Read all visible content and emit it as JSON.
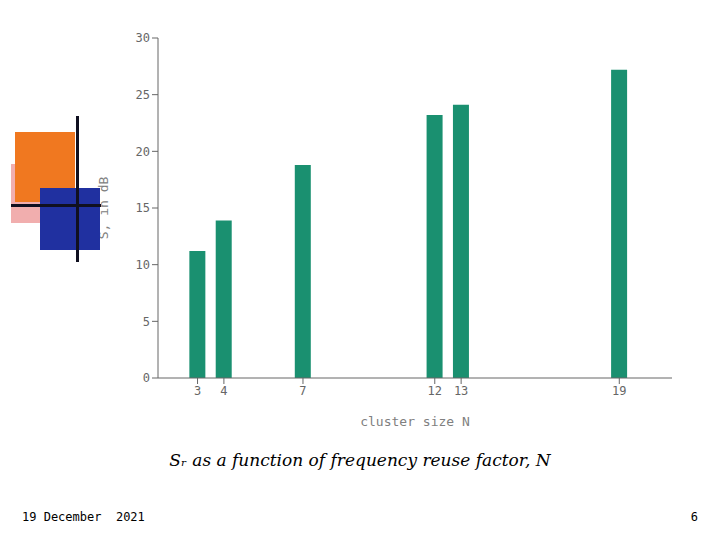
{
  "chart_data": {
    "type": "bar",
    "x": [
      3,
      4,
      7,
      12,
      13,
      19
    ],
    "values": [
      11.2,
      13.9,
      18.8,
      23.2,
      24.1,
      27.2
    ],
    "color": "#1a9070",
    "xlim": [
      1.5,
      21
    ],
    "ylim": [
      0,
      30
    ],
    "xticks": [
      3,
      4,
      7,
      12,
      13,
      19
    ],
    "yticks": [
      0,
      5,
      10,
      15,
      20,
      25,
      30
    ],
    "xlabel": "cluster size N",
    "ylabel": "S, in dB",
    "annotations": [
      "Sᵣ as a function of frequency reuse factor, N",
      "19 December  2021",
      "6"
    ],
    "grid": false
  }
}
